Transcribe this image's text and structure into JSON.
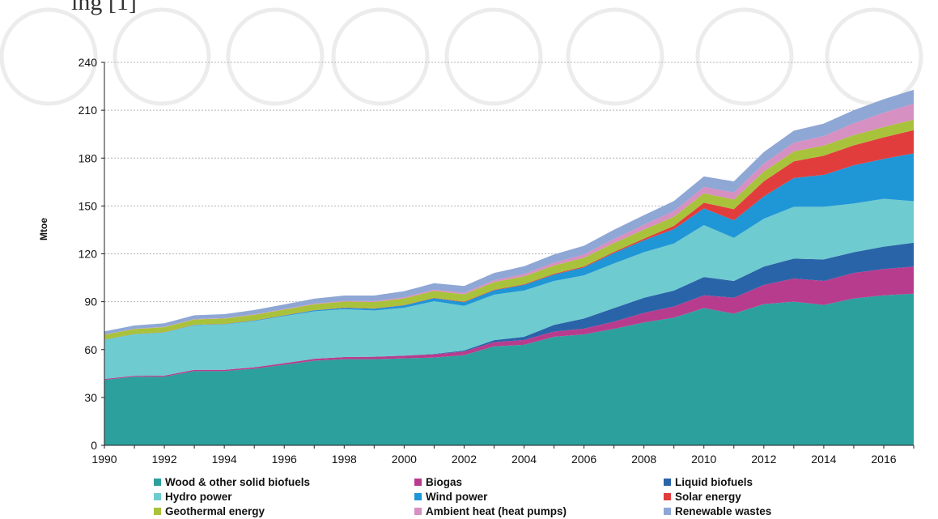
{
  "header_fragment": "ing",
  "header_ref": "[1]",
  "chart_data": {
    "type": "area",
    "stacked": true,
    "title": "",
    "xlabel": "",
    "ylabel": "Mtoe",
    "ylim": [
      0,
      240
    ],
    "yticks": [
      0,
      30,
      60,
      90,
      120,
      150,
      180,
      210,
      240
    ],
    "xticks": [
      1990,
      1992,
      1994,
      1996,
      1998,
      2000,
      2002,
      2004,
      2006,
      2008,
      2010,
      2012,
      2014,
      2016
    ],
    "grid": "horizontal dashed",
    "legend_position": "bottom",
    "x": [
      1990,
      1991,
      1992,
      1993,
      1994,
      1995,
      1996,
      1997,
      1998,
      1999,
      2000,
      2001,
      2002,
      2003,
      2004,
      2005,
      2006,
      2007,
      2008,
      2009,
      2010,
      2011,
      2012,
      2013,
      2014,
      2015,
      2016,
      2017
    ],
    "series": [
      {
        "name": "Wood & other solid biofuels",
        "color": "#2ca09d",
        "values": [
          41,
          43,
          43,
          46.5,
          46.5,
          48,
          50.5,
          53,
          54,
          54,
          54.5,
          55,
          56.5,
          62,
          63,
          68,
          69.5,
          73,
          77,
          80,
          86,
          82.5,
          88.5,
          90,
          88,
          92,
          94,
          95
        ]
      },
      {
        "name": "Biogas",
        "color": "#b83c8e",
        "values": [
          0.6,
          0.6,
          0.7,
          0.8,
          0.8,
          0.9,
          1,
          1.2,
          1.3,
          1.5,
          1.7,
          2,
          2.3,
          2.6,
          3,
          3.3,
          3.6,
          4.5,
          6,
          7,
          8,
          10,
          12,
          14.5,
          15,
          16,
          16.5,
          17
        ]
      },
      {
        "name": "Liquid biofuels",
        "color": "#2a64a8",
        "values": [
          0,
          0,
          0,
          0,
          0,
          0,
          0,
          0,
          0,
          0,
          0,
          0.3,
          0.6,
          1.3,
          2,
          4.2,
          6.4,
          8.5,
          9.5,
          10,
          11.5,
          10.5,
          11.5,
          12.5,
          13.5,
          13,
          14,
          15
        ]
      },
      {
        "name": "Hydro power",
        "color": "#6ecbd0",
        "values": [
          24.5,
          26,
          27,
          28,
          28.5,
          29,
          29.5,
          29.8,
          30,
          29,
          30,
          33,
          28,
          28.5,
          29,
          27.5,
          27,
          28,
          28.5,
          29.5,
          32.5,
          27,
          30,
          32.5,
          33,
          30.5,
          30,
          26
        ]
      },
      {
        "name": "Wind power",
        "color": "#1f96d6",
        "values": [
          0.1,
          0.1,
          0.1,
          0.2,
          0.2,
          0.3,
          0.4,
          0.6,
          0.8,
          1.1,
          1.5,
          1.9,
          2.3,
          2.8,
          3.5,
          4,
          5,
          6.5,
          7.5,
          9,
          10.5,
          11,
          14,
          18,
          20,
          24,
          25,
          30
        ]
      },
      {
        "name": "Solar energy",
        "color": "#e23d3d",
        "values": [
          0.1,
          0.1,
          0.1,
          0.1,
          0.1,
          0.1,
          0.1,
          0.1,
          0.2,
          0.2,
          0.2,
          0.2,
          0.3,
          0.3,
          0.4,
          0.5,
          0.6,
          0.7,
          1,
          2,
          3.5,
          7,
          9.5,
          10.5,
          12,
          12.5,
          13.5,
          14.5
        ]
      },
      {
        "name": "Geothermal energy",
        "color": "#a9c23b",
        "values": [
          3,
          3.1,
          3.2,
          3.3,
          3.4,
          3.5,
          3.6,
          3.7,
          3.8,
          4,
          4.2,
          4.4,
          4.6,
          4.8,
          5,
          5.2,
          5.4,
          5.6,
          5.7,
          5.8,
          5.9,
          6,
          6.1,
          6.2,
          6.3,
          6.4,
          6.5,
          6.6
        ]
      },
      {
        "name": "Ambient heat (heat pumps)",
        "color": "#d690c2",
        "values": [
          0.1,
          0.1,
          0.2,
          0.2,
          0.2,
          0.3,
          0.3,
          0.4,
          0.5,
          0.6,
          0.7,
          0.8,
          1,
          1.2,
          1.5,
          1.8,
          2.2,
          2.6,
          3,
          3.5,
          4,
          4.5,
          5,
          5.5,
          6,
          7.5,
          9,
          10
        ]
      },
      {
        "name": "Renewable wastes",
        "color": "#8ea7d5",
        "values": [
          2,
          2.1,
          2.2,
          2.4,
          2.5,
          2.7,
          2.9,
          3.1,
          3.3,
          3.5,
          3.8,
          4,
          4.2,
          4.5,
          4.8,
          5.1,
          5.4,
          5.7,
          6,
          6.3,
          6.6,
          6.9,
          7.2,
          7.5,
          7.8,
          8.1,
          8.4,
          8.7
        ]
      }
    ]
  }
}
